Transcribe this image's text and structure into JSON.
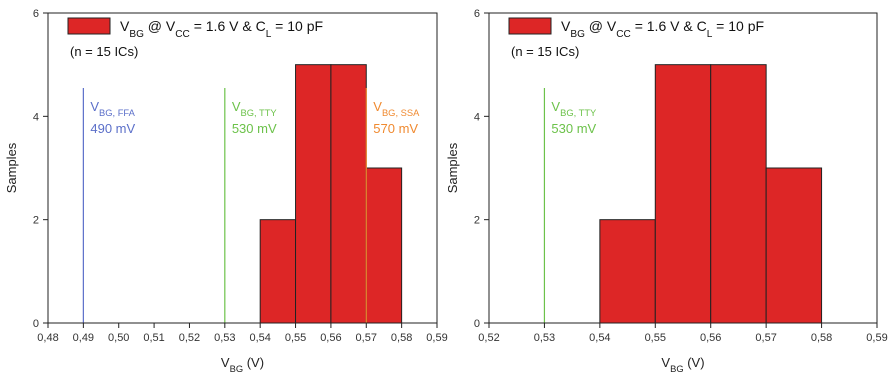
{
  "chart_data": [
    {
      "type": "bar",
      "subtype": "histogram",
      "legend": {
        "label_parts": [
          "V",
          "BG",
          " @ V",
          "CC",
          " = 1.6 V & C",
          "L",
          " = 10 pF"
        ],
        "color": "#dd2626",
        "placement": "top-left"
      },
      "note": "(n = 15 ICs)",
      "xlabel": {
        "main": "V",
        "sub": "BG",
        "unit": " (V)"
      },
      "ylabel": "Samples",
      "xlim": [
        0.48,
        0.59
      ],
      "ylim": [
        0,
        6
      ],
      "x_ticks": [
        "0,48",
        "0,49",
        "0,50",
        "0,51",
        "0,52",
        "0,53",
        "0,54",
        "0,55",
        "0,56",
        "0,57",
        "0,58",
        "0,59"
      ],
      "y_ticks": [
        "0",
        "2",
        "4",
        "6"
      ],
      "bins": [
        {
          "x0": 0.54,
          "x1": 0.55,
          "value": 2
        },
        {
          "x0": 0.55,
          "x1": 0.56,
          "value": 5
        },
        {
          "x0": 0.56,
          "x1": 0.57,
          "value": 5
        },
        {
          "x0": 0.57,
          "x1": 0.58,
          "value": 3
        }
      ],
      "markers": [
        {
          "x": 0.49,
          "label_main": "V",
          "label_sub": "BG, FFA",
          "value_text": "490 mV",
          "color": "#5b6fc9"
        },
        {
          "x": 0.53,
          "label_main": "V",
          "label_sub": "BG, TTY",
          "value_text": "530 mV",
          "color": "#6cc24a"
        },
        {
          "x": 0.57,
          "label_main": "V",
          "label_sub": "BG, SSA",
          "value_text": "570 mV",
          "color": "#f08a30"
        }
      ]
    },
    {
      "type": "bar",
      "subtype": "histogram",
      "legend": {
        "label_parts": [
          "V",
          "BG",
          " @ V",
          "CC",
          " = 1.6 V & C",
          "L",
          " = 10 pF"
        ],
        "color": "#dd2626",
        "placement": "top-left"
      },
      "note": "(n = 15 ICs)",
      "xlabel": {
        "main": "V",
        "sub": "BG",
        "unit": " (V)"
      },
      "ylabel": "Samples",
      "xlim": [
        0.52,
        0.59
      ],
      "ylim": [
        0,
        6
      ],
      "x_ticks": [
        "0,52",
        "0,53",
        "0,54",
        "0,55",
        "0,56",
        "0,57",
        "0,58",
        "0,59"
      ],
      "y_ticks": [
        "0",
        "2",
        "4",
        "6"
      ],
      "bins": [
        {
          "x0": 0.54,
          "x1": 0.55,
          "value": 2
        },
        {
          "x0": 0.55,
          "x1": 0.56,
          "value": 5
        },
        {
          "x0": 0.56,
          "x1": 0.57,
          "value": 5
        },
        {
          "x0": 0.57,
          "x1": 0.58,
          "value": 3
        }
      ],
      "markers": [
        {
          "x": 0.53,
          "label_main": "V",
          "label_sub": "BG, TTY",
          "value_text": "530 mV",
          "color": "#6cc24a"
        }
      ]
    }
  ]
}
